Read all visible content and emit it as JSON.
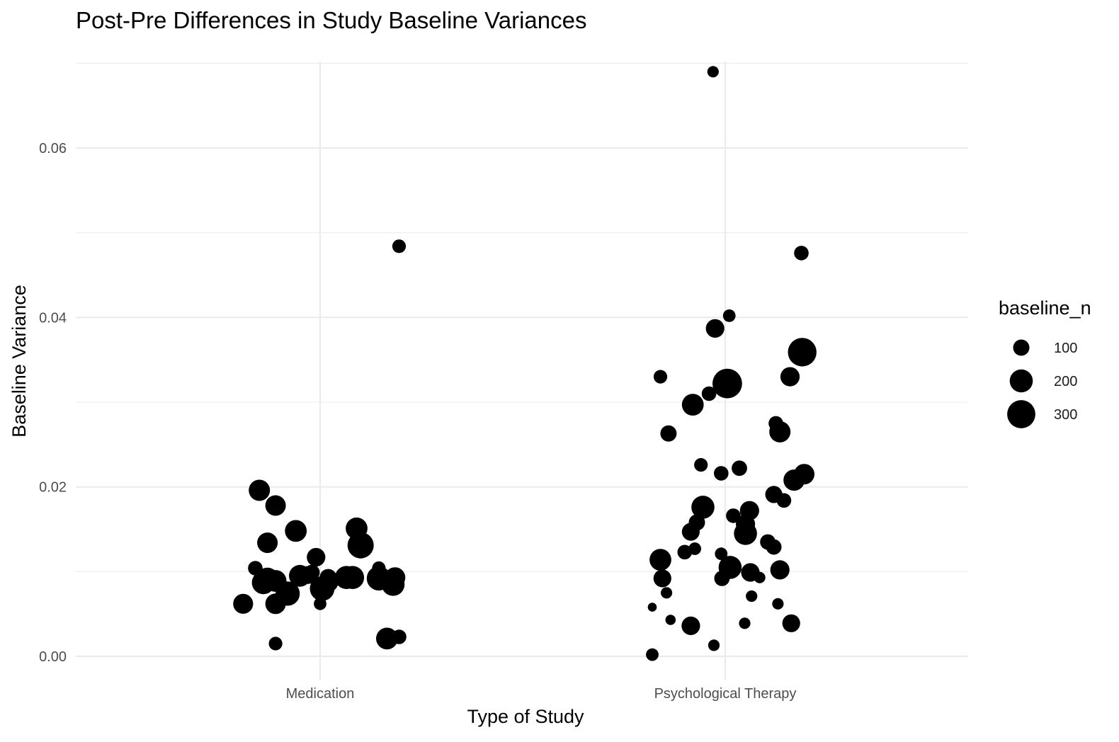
{
  "chart_data": {
    "type": "scatter",
    "title": "Post-Pre Differences in Study Baseline Variances",
    "xlabel": "Type of Study",
    "ylabel": "Baseline Variance",
    "categories": [
      "Medication",
      "Psychological Therapy"
    ],
    "y_ticks": [
      0.0,
      0.02,
      0.04,
      0.06
    ],
    "y_tick_labels": [
      "0.00",
      "0.02",
      "0.04",
      "0.06"
    ],
    "ylim": [
      -0.0028,
      0.0702
    ],
    "grid": true,
    "legend": {
      "title": "baseline_n",
      "position": "right",
      "entries": [
        {
          "label": "100",
          "size": 100
        },
        {
          "label": "200",
          "size": 200
        },
        {
          "label": "300",
          "size": 300
        }
      ]
    },
    "points": [
      {
        "category": "Medication",
        "jitter": -0.19,
        "y": 0.0062,
        "size": 150
      },
      {
        "category": "Medication",
        "jitter": -0.16,
        "y": 0.0104,
        "size": 80
      },
      {
        "category": "Medication",
        "jitter": -0.15,
        "y": 0.0196,
        "size": 170
      },
      {
        "category": "Medication",
        "jitter": -0.14,
        "y": 0.0087,
        "size": 200
      },
      {
        "category": "Medication",
        "jitter": -0.13,
        "y": 0.0091,
        "size": 200
      },
      {
        "category": "Medication",
        "jitter": -0.13,
        "y": 0.0134,
        "size": 160
      },
      {
        "category": "Medication",
        "jitter": -0.11,
        "y": 0.0178,
        "size": 160
      },
      {
        "category": "Medication",
        "jitter": -0.11,
        "y": 0.0015,
        "size": 70
      },
      {
        "category": "Medication",
        "jitter": -0.11,
        "y": 0.0062,
        "size": 160
      },
      {
        "category": "Medication",
        "jitter": -0.11,
        "y": 0.0089,
        "size": 180
      },
      {
        "category": "Medication",
        "jitter": -0.08,
        "y": 0.0074,
        "size": 220
      },
      {
        "category": "Medication",
        "jitter": -0.06,
        "y": 0.0148,
        "size": 180
      },
      {
        "category": "Medication",
        "jitter": -0.05,
        "y": 0.0095,
        "size": 180
      },
      {
        "category": "Medication",
        "jitter": -0.03,
        "y": 0.0096,
        "size": 120
      },
      {
        "category": "Medication",
        "jitter": -0.02,
        "y": 0.0099,
        "size": 90
      },
      {
        "category": "Medication",
        "jitter": -0.01,
        "y": 0.0117,
        "size": 130
      },
      {
        "category": "Medication",
        "jitter": 0.0,
        "y": 0.0062,
        "size": 60
      },
      {
        "category": "Medication",
        "jitter": 0.005,
        "y": 0.008,
        "size": 230
      },
      {
        "category": "Medication",
        "jitter": 0.02,
        "y": 0.0088,
        "size": 160
      },
      {
        "category": "Medication",
        "jitter": 0.02,
        "y": 0.0093,
        "size": 110
      },
      {
        "category": "Medication",
        "jitter": 0.065,
        "y": 0.0093,
        "size": 200
      },
      {
        "category": "Medication",
        "jitter": 0.08,
        "y": 0.0093,
        "size": 200
      },
      {
        "category": "Medication",
        "jitter": 0.09,
        "y": 0.0151,
        "size": 180
      },
      {
        "category": "Medication",
        "jitter": 0.1,
        "y": 0.0131,
        "size": 260
      },
      {
        "category": "Medication",
        "jitter": 0.145,
        "y": 0.0104,
        "size": 70
      },
      {
        "category": "Medication",
        "jitter": 0.145,
        "y": 0.0092,
        "size": 220
      },
      {
        "category": "Medication",
        "jitter": 0.165,
        "y": 0.0021,
        "size": 180
      },
      {
        "category": "Medication",
        "jitter": 0.18,
        "y": 0.0085,
        "size": 200
      },
      {
        "category": "Medication",
        "jitter": 0.185,
        "y": 0.0093,
        "size": 160
      },
      {
        "category": "Medication",
        "jitter": 0.195,
        "y": 0.0484,
        "size": 70
      },
      {
        "category": "Medication",
        "jitter": 0.195,
        "y": 0.0023,
        "size": 80
      },
      {
        "category": "Psychological Therapy",
        "jitter": -0.18,
        "y": 0.0002,
        "size": 60
      },
      {
        "category": "Psychological Therapy",
        "jitter": -0.18,
        "y": 0.0058,
        "size": 30
      },
      {
        "category": "Psychological Therapy",
        "jitter": -0.16,
        "y": 0.0114,
        "size": 180
      },
      {
        "category": "Psychological Therapy",
        "jitter": -0.16,
        "y": 0.033,
        "size": 70
      },
      {
        "category": "Psychological Therapy",
        "jitter": -0.155,
        "y": 0.0092,
        "size": 120
      },
      {
        "category": "Psychological Therapy",
        "jitter": -0.145,
        "y": 0.0075,
        "size": 50
      },
      {
        "category": "Psychological Therapy",
        "jitter": -0.14,
        "y": 0.0263,
        "size": 100
      },
      {
        "category": "Psychological Therapy",
        "jitter": -0.135,
        "y": 0.0043,
        "size": 40
      },
      {
        "category": "Psychological Therapy",
        "jitter": -0.1,
        "y": 0.0123,
        "size": 80
      },
      {
        "category": "Psychological Therapy",
        "jitter": -0.085,
        "y": 0.0147,
        "size": 120
      },
      {
        "category": "Psychological Therapy",
        "jitter": -0.085,
        "y": 0.0036,
        "size": 130
      },
      {
        "category": "Psychological Therapy",
        "jitter": -0.08,
        "y": 0.0297,
        "size": 180
      },
      {
        "category": "Psychological Therapy",
        "jitter": -0.075,
        "y": 0.0127,
        "size": 60
      },
      {
        "category": "Psychological Therapy",
        "jitter": -0.07,
        "y": 0.0158,
        "size": 100
      },
      {
        "category": "Psychological Therapy",
        "jitter": -0.06,
        "y": 0.0226,
        "size": 70
      },
      {
        "category": "Psychological Therapy",
        "jitter": -0.055,
        "y": 0.0176,
        "size": 200
      },
      {
        "category": "Psychological Therapy",
        "jitter": -0.04,
        "y": 0.031,
        "size": 80
      },
      {
        "category": "Psychological Therapy",
        "jitter": -0.03,
        "y": 0.069,
        "size": 50
      },
      {
        "category": "Psychological Therapy",
        "jitter": -0.028,
        "y": 0.0013,
        "size": 50
      },
      {
        "category": "Psychological Therapy",
        "jitter": -0.025,
        "y": 0.0387,
        "size": 130
      },
      {
        "category": "Psychological Therapy",
        "jitter": -0.01,
        "y": 0.0216,
        "size": 80
      },
      {
        "category": "Psychological Therapy",
        "jitter": -0.01,
        "y": 0.0121,
        "size": 60
      },
      {
        "category": "Psychological Therapy",
        "jitter": -0.008,
        "y": 0.0092,
        "size": 90
      },
      {
        "category": "Psychological Therapy",
        "jitter": 0.005,
        "y": 0.0322,
        "size": 330
      },
      {
        "category": "Psychological Therapy",
        "jitter": 0.01,
        "y": 0.0402,
        "size": 60
      },
      {
        "category": "Psychological Therapy",
        "jitter": 0.012,
        "y": 0.0105,
        "size": 200
      },
      {
        "category": "Psychological Therapy",
        "jitter": 0.02,
        "y": 0.0166,
        "size": 80
      },
      {
        "category": "Psychological Therapy",
        "jitter": 0.035,
        "y": 0.0222,
        "size": 90
      },
      {
        "category": "Psychological Therapy",
        "jitter": 0.048,
        "y": 0.0039,
        "size": 50
      },
      {
        "category": "Psychological Therapy",
        "jitter": 0.05,
        "y": 0.0156,
        "size": 140
      },
      {
        "category": "Psychological Therapy",
        "jitter": 0.05,
        "y": 0.0145,
        "size": 200
      },
      {
        "category": "Psychological Therapy",
        "jitter": 0.06,
        "y": 0.0172,
        "size": 140
      },
      {
        "category": "Psychological Therapy",
        "jitter": 0.062,
        "y": 0.0099,
        "size": 130
      },
      {
        "category": "Psychological Therapy",
        "jitter": 0.065,
        "y": 0.0071,
        "size": 50
      },
      {
        "category": "Psychological Therapy",
        "jitter": 0.085,
        "y": 0.0093,
        "size": 50
      },
      {
        "category": "Psychological Therapy",
        "jitter": 0.105,
        "y": 0.0135,
        "size": 90
      },
      {
        "category": "Psychological Therapy",
        "jitter": 0.12,
        "y": 0.0191,
        "size": 110
      },
      {
        "category": "Psychological Therapy",
        "jitter": 0.12,
        "y": 0.0129,
        "size": 90
      },
      {
        "category": "Psychological Therapy",
        "jitter": 0.125,
        "y": 0.0275,
        "size": 80
      },
      {
        "category": "Psychological Therapy",
        "jitter": 0.13,
        "y": 0.0062,
        "size": 50
      },
      {
        "category": "Psychological Therapy",
        "jitter": 0.13,
        "y": 0.0102,
        "size": 60
      },
      {
        "category": "Psychological Therapy",
        "jitter": 0.135,
        "y": 0.0265,
        "size": 170
      },
      {
        "category": "Psychological Therapy",
        "jitter": 0.135,
        "y": 0.0102,
        "size": 140
      },
      {
        "category": "Psychological Therapy",
        "jitter": 0.145,
        "y": 0.0184,
        "size": 80
      },
      {
        "category": "Psychological Therapy",
        "jitter": 0.16,
        "y": 0.033,
        "size": 140
      },
      {
        "category": "Psychological Therapy",
        "jitter": 0.163,
        "y": 0.0039,
        "size": 120
      },
      {
        "category": "Psychological Therapy",
        "jitter": 0.17,
        "y": 0.0208,
        "size": 170
      },
      {
        "category": "Psychological Therapy",
        "jitter": 0.188,
        "y": 0.0476,
        "size": 80
      },
      {
        "category": "Psychological Therapy",
        "jitter": 0.19,
        "y": 0.0359,
        "size": 310
      },
      {
        "category": "Psychological Therapy",
        "jitter": 0.195,
        "y": 0.0215,
        "size": 160
      }
    ]
  }
}
